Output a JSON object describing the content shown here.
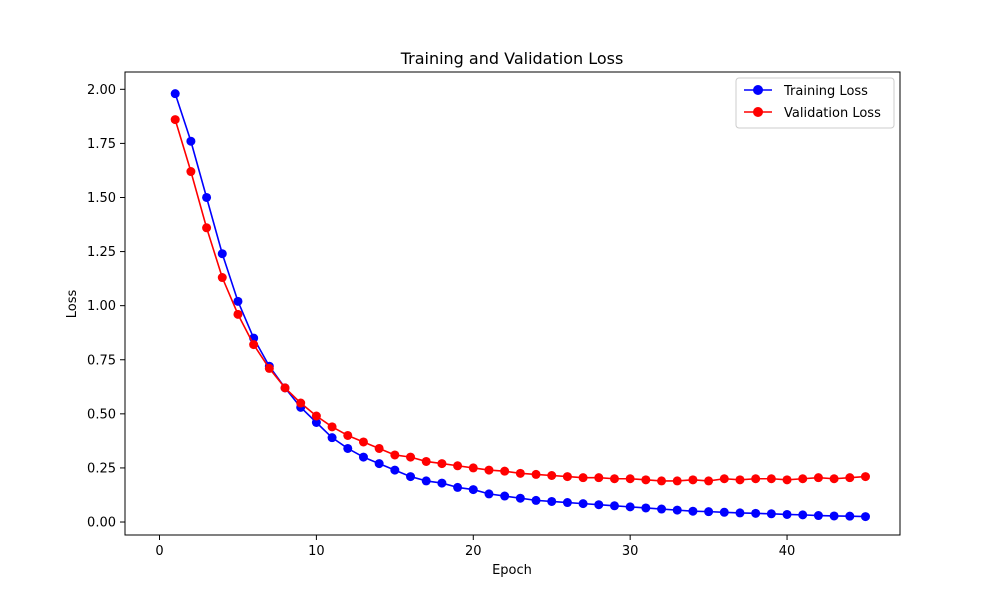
{
  "chart_data": {
    "type": "line",
    "title": "Training and Validation Loss",
    "xlabel": "Epoch",
    "ylabel": "Loss",
    "xlim": [
      -2.2,
      47.2
    ],
    "ylim": [
      -0.06,
      2.08
    ],
    "xticks": [
      0,
      10,
      20,
      30,
      40
    ],
    "yticks": [
      0.0,
      0.25,
      0.5,
      0.75,
      1.0,
      1.25,
      1.5,
      1.75,
      2.0
    ],
    "ytick_labels": [
      "0.00",
      "0.25",
      "0.50",
      "0.75",
      "1.00",
      "1.25",
      "1.50",
      "1.75",
      "2.00"
    ],
    "grid": false,
    "legend_position": "top-right",
    "x": [
      1,
      2,
      3,
      4,
      5,
      6,
      7,
      8,
      9,
      10,
      11,
      12,
      13,
      14,
      15,
      16,
      17,
      18,
      19,
      20,
      21,
      22,
      23,
      24,
      25,
      26,
      27,
      28,
      29,
      30,
      31,
      32,
      33,
      34,
      35,
      36,
      37,
      38,
      39,
      40,
      41,
      42,
      43,
      44,
      45
    ],
    "series": [
      {
        "name": "Training Loss",
        "color": "#0000ff",
        "values": [
          1.98,
          1.76,
          1.5,
          1.24,
          1.02,
          0.85,
          0.72,
          0.62,
          0.53,
          0.46,
          0.39,
          0.34,
          0.3,
          0.27,
          0.24,
          0.21,
          0.19,
          0.18,
          0.16,
          0.15,
          0.13,
          0.12,
          0.11,
          0.1,
          0.095,
          0.09,
          0.085,
          0.08,
          0.075,
          0.07,
          0.065,
          0.06,
          0.055,
          0.05,
          0.048,
          0.045,
          0.042,
          0.04,
          0.038,
          0.035,
          0.033,
          0.03,
          0.028,
          0.027,
          0.025
        ]
      },
      {
        "name": "Validation Loss",
        "color": "#ff0000",
        "values": [
          1.86,
          1.62,
          1.36,
          1.13,
          0.96,
          0.82,
          0.71,
          0.62,
          0.55,
          0.49,
          0.44,
          0.4,
          0.37,
          0.34,
          0.31,
          0.3,
          0.28,
          0.27,
          0.26,
          0.25,
          0.24,
          0.235,
          0.225,
          0.22,
          0.215,
          0.21,
          0.205,
          0.205,
          0.2,
          0.2,
          0.195,
          0.19,
          0.19,
          0.195,
          0.19,
          0.2,
          0.195,
          0.2,
          0.2,
          0.195,
          0.2,
          0.205,
          0.2,
          0.205,
          0.21
        ]
      }
    ]
  }
}
